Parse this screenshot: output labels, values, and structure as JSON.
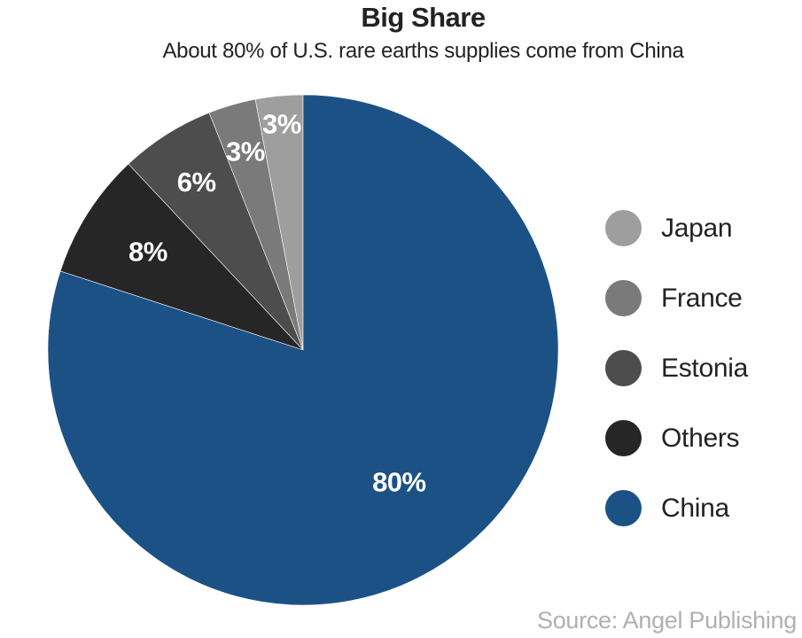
{
  "chart_data": {
    "type": "pie",
    "title": "Big Share",
    "subtitle": "About 80% of U.S. rare earths supplies come from China",
    "slices": [
      {
        "name": "Japan",
        "value": 3,
        "label": "3%",
        "color": "#9e9e9e"
      },
      {
        "name": "France",
        "value": 3,
        "label": "3%",
        "color": "#7a7a7a"
      },
      {
        "name": "Estonia",
        "value": 6,
        "label": "6%",
        "color": "#4d4d4d"
      },
      {
        "name": "Others",
        "value": 8,
        "label": "8%",
        "color": "#262626"
      },
      {
        "name": "China",
        "value": 80,
        "label": "80%",
        "color": "#1c5186"
      }
    ],
    "legend_position": "right",
    "start": "12 o'clock",
    "direction": "counter-clockwise"
  },
  "source": "Source: Angel Publishing"
}
